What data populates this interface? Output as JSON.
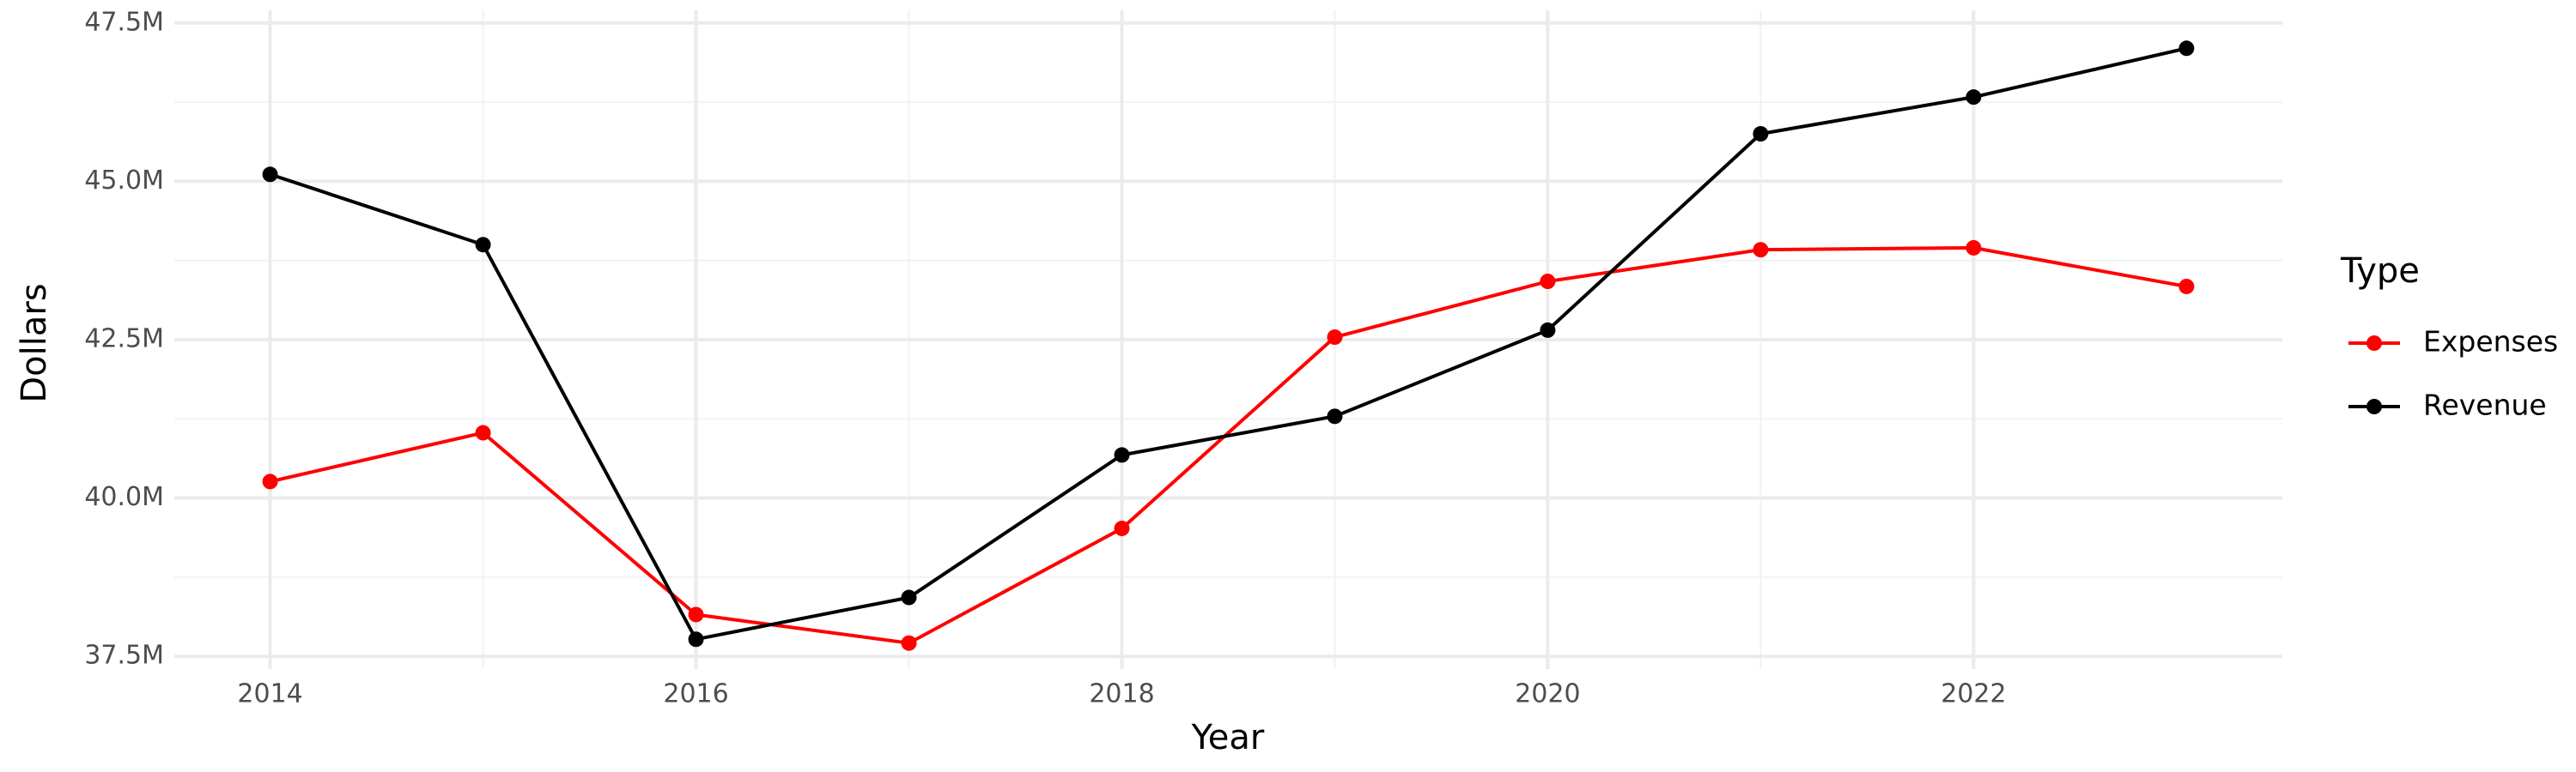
{
  "chart_data": {
    "type": "line",
    "x_label": "Year",
    "y_label": "Dollars",
    "legend_title": "Type",
    "legend": "right",
    "x": [
      2014,
      2015,
      2016,
      2017,
      2018,
      2019,
      2020,
      2021,
      2022,
      2023
    ],
    "series": [
      {
        "name": "Expenses",
        "color": "#ff0000",
        "values": [
          40260000,
          41030000,
          38160000,
          37710000,
          39520000,
          42540000,
          43420000,
          43920000,
          43950000,
          43340000
        ]
      },
      {
        "name": "Revenue",
        "color": "#000000",
        "values": [
          45110000,
          44000000,
          37770000,
          38430000,
          40680000,
          41290000,
          42650000,
          45750000,
          46330000,
          47100000
        ]
      }
    ],
    "xlim": [
      2013.55,
      2023.45
    ],
    "xticks": [
      2014,
      2016,
      2018,
      2020,
      2022
    ],
    "ylim": [
      37300000,
      47700000
    ],
    "yticks": [
      {
        "value": 37500000,
        "label": "37.5M"
      },
      {
        "value": 40000000,
        "label": "40.0M"
      },
      {
        "value": 42500000,
        "label": "42.5M"
      },
      {
        "value": 45000000,
        "label": "45.0M"
      },
      {
        "value": 47500000,
        "label": "47.5M"
      }
    ],
    "grid": true
  }
}
